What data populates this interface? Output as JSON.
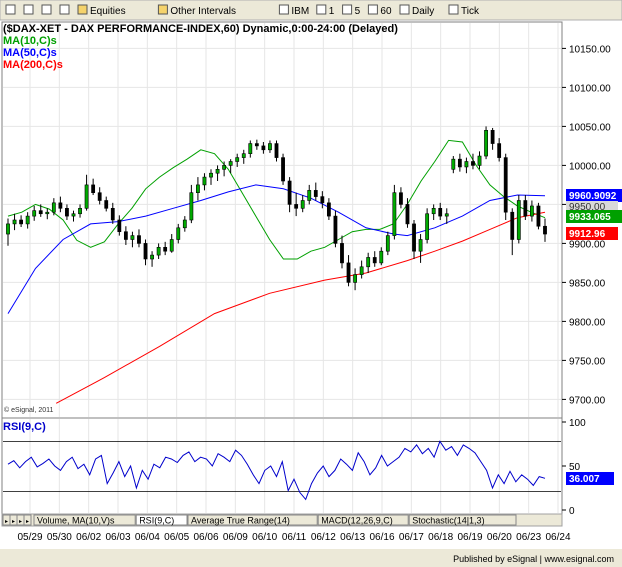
{
  "toolbar": {
    "items": [
      {
        "icon": "chart-type-icon",
        "label": ""
      },
      {
        "icon": "grid-icon",
        "label": ""
      },
      {
        "icon": "crosshair-icon",
        "label": ""
      },
      {
        "icon": "add-icon",
        "label": ""
      },
      {
        "icon": "folder-icon",
        "label": "Equities"
      },
      {
        "icon": "folder-icon",
        "label": "Other Intervals"
      },
      {
        "icon": "symbol-icon",
        "label": "IBM"
      },
      {
        "icon": "interval-icon",
        "label": "1"
      },
      {
        "icon": "interval-icon",
        "label": "5"
      },
      {
        "icon": "interval-icon",
        "label": "60"
      },
      {
        "icon": "interval-icon",
        "label": "Daily"
      },
      {
        "icon": "interval-icon",
        "label": "Tick"
      }
    ]
  },
  "colors": {
    "price": "#000000",
    "candle_up": "#00aa00",
    "ma10": "#00a000",
    "ma50": "#0000ff",
    "ma200": "#ff0000",
    "rsi": "#0000cc",
    "grid": "#e6e6e6"
  },
  "chart_data": [
    {
      "type": "candlestick",
      "title": "($DAX-XET - DAX PERFORMANCE-INDEX,60) Dynamic,0:00-24:00 (Delayed)",
      "legend": [
        "MA(10,C)s",
        "MA(50,C)s",
        "MA(200,C)s"
      ],
      "legend_placement": "top-left",
      "grid": true,
      "watermark": "© eSignal, 2011",
      "x_tick_labels": [
        "05/29",
        "05/30",
        "06/02",
        "06/03",
        "06/04",
        "06/05",
        "06/06",
        "06/09",
        "06/10",
        "06/11",
        "06/12",
        "06/13",
        "06/16",
        "06/17",
        "06/18",
        "06/19",
        "06/20",
        "06/23",
        "06/24"
      ],
      "y_ticks": [
        10150,
        10100,
        10050,
        10000,
        9950,
        9900,
        9850,
        9800,
        9750,
        9700
      ],
      "ylim": [
        9680,
        10180
      ],
      "last_values": {
        "ma50": "9960.9092",
        "hidden_tag": "9950.00",
        "ma10": "9933.065",
        "last_price": "9912.96"
      },
      "series": [
        {
          "name": "MA(10,C)s",
          "x": [
            0,
            4,
            8,
            12,
            16,
            20,
            24,
            28,
            32,
            36,
            40,
            44,
            48,
            52,
            56,
            60,
            64,
            68,
            72,
            76,
            80,
            84,
            88,
            92,
            96,
            100,
            104,
            108,
            112,
            116,
            120,
            124,
            128,
            132,
            136,
            140,
            144,
            148,
            152,
            156
          ],
          "values": [
            9935,
            9940,
            9950,
            9944,
            9930,
            9904,
            9895,
            9902,
            9925,
            9945,
            9970,
            9985,
            9997,
            10008,
            10020,
            10015,
            9995,
            9965,
            9935,
            9905,
            9880,
            9880,
            9890,
            9895,
            9905,
            9915,
            9918,
            9918,
            9925,
            9950,
            9980,
            10005,
            10032,
            10030,
            10000,
            9975,
            9960,
            9948,
            9940,
            9933
          ]
        },
        {
          "name": "MA(50,C)s",
          "x": [
            0,
            8,
            16,
            24,
            32,
            40,
            48,
            56,
            64,
            72,
            80,
            88,
            96,
            104,
            112,
            116,
            124,
            132,
            140,
            148,
            156
          ],
          "values": [
            9810,
            9868,
            9905,
            9925,
            9928,
            9935,
            9945,
            9955,
            9966,
            9975,
            9970,
            9958,
            9940,
            9920,
            9912,
            9910,
            9920,
            9935,
            9955,
            9962,
            9961
          ]
        },
        {
          "name": "MA(200,C)s",
          "x": [
            14,
            28,
            44,
            60,
            76,
            92,
            104,
            116,
            124,
            132,
            140,
            148,
            156
          ],
          "values": [
            9695,
            9728,
            9768,
            9810,
            9836,
            9853,
            9862,
            9878,
            9890,
            9903,
            9918,
            9933,
            9940
          ]
        }
      ],
      "candles": [
        {
          "o": 9912,
          "h": 9932,
          "l": 9897,
          "c": 9925
        },
        {
          "o": 9925,
          "h": 9938,
          "l": 9917,
          "c": 9930
        },
        {
          "o": 9930,
          "h": 9936,
          "l": 9921,
          "c": 9925
        },
        {
          "o": 9925,
          "h": 9940,
          "l": 9919,
          "c": 9935
        },
        {
          "o": 9935,
          "h": 9948,
          "l": 9929,
          "c": 9942
        },
        {
          "o": 9942,
          "h": 9950,
          "l": 9934,
          "c": 9938
        },
        {
          "o": 9938,
          "h": 9945,
          "l": 9931,
          "c": 9940
        },
        {
          "o": 9940,
          "h": 9958,
          "l": 9936,
          "c": 9952
        },
        {
          "o": 9952,
          "h": 9960,
          "l": 9940,
          "c": 9945
        },
        {
          "o": 9945,
          "h": 9950,
          "l": 9930,
          "c": 9935
        },
        {
          "o": 9935,
          "h": 9942,
          "l": 9928,
          "c": 9938
        },
        {
          "o": 9938,
          "h": 9950,
          "l": 9933,
          "c": 9945
        },
        {
          "o": 9945,
          "h": 9988,
          "l": 9942,
          "c": 9975
        },
        {
          "o": 9975,
          "h": 9983,
          "l": 9962,
          "c": 9965
        },
        {
          "o": 9965,
          "h": 9972,
          "l": 9950,
          "c": 9955
        },
        {
          "o": 9955,
          "h": 9960,
          "l": 9941,
          "c": 9945
        },
        {
          "o": 9945,
          "h": 9952,
          "l": 9925,
          "c": 9930
        },
        {
          "o": 9930,
          "h": 9936,
          "l": 9910,
          "c": 9915
        },
        {
          "o": 9915,
          "h": 9922,
          "l": 9898,
          "c": 9905
        },
        {
          "o": 9905,
          "h": 9915,
          "l": 9895,
          "c": 9910
        },
        {
          "o": 9910,
          "h": 9918,
          "l": 9895,
          "c": 9900
        },
        {
          "o": 9900,
          "h": 9905,
          "l": 9872,
          "c": 9880
        },
        {
          "o": 9880,
          "h": 9890,
          "l": 9870,
          "c": 9885
        },
        {
          "o": 9885,
          "h": 9900,
          "l": 9880,
          "c": 9895
        },
        {
          "o": 9895,
          "h": 9902,
          "l": 9885,
          "c": 9890
        },
        {
          "o": 9890,
          "h": 9912,
          "l": 9888,
          "c": 9905
        },
        {
          "o": 9905,
          "h": 9925,
          "l": 9900,
          "c": 9920
        },
        {
          "o": 9920,
          "h": 9935,
          "l": 9915,
          "c": 9930
        },
        {
          "o": 9930,
          "h": 9975,
          "l": 9926,
          "c": 9965
        },
        {
          "o": 9965,
          "h": 9985,
          "l": 9955,
          "c": 9975
        },
        {
          "o": 9975,
          "h": 9990,
          "l": 9968,
          "c": 9985
        },
        {
          "o": 9985,
          "h": 9995,
          "l": 9975,
          "c": 9990
        },
        {
          "o": 9990,
          "h": 10000,
          "l": 9980,
          "c": 9995
        },
        {
          "o": 9995,
          "h": 10005,
          "l": 9986,
          "c": 10000
        },
        {
          "o": 10000,
          "h": 10008,
          "l": 9990,
          "c": 10005
        },
        {
          "o": 10005,
          "h": 10015,
          "l": 9998,
          "c": 10010
        },
        {
          "o": 10010,
          "h": 10020,
          "l": 10002,
          "c": 10015
        },
        {
          "o": 10015,
          "h": 10032,
          "l": 10010,
          "c": 10028
        },
        {
          "o": 10028,
          "h": 10033,
          "l": 10020,
          "c": 10025
        },
        {
          "o": 10025,
          "h": 10030,
          "l": 10015,
          "c": 10020
        },
        {
          "o": 10020,
          "h": 10032,
          "l": 10016,
          "c": 10028
        },
        {
          "o": 10028,
          "h": 10032,
          "l": 10005,
          "c": 10010
        },
        {
          "o": 10010,
          "h": 10015,
          "l": 9975,
          "c": 9980
        },
        {
          "o": 9980,
          "h": 9985,
          "l": 9940,
          "c": 9950
        },
        {
          "o": 9950,
          "h": 9965,
          "l": 9935,
          "c": 9945
        },
        {
          "o": 9945,
          "h": 9962,
          "l": 9940,
          "c": 9955
        },
        {
          "o": 9955,
          "h": 9975,
          "l": 9950,
          "c": 9968
        },
        {
          "o": 9968,
          "h": 9978,
          "l": 9955,
          "c": 9960
        },
        {
          "o": 9960,
          "h": 9967,
          "l": 9945,
          "c": 9952
        },
        {
          "o": 9952,
          "h": 9958,
          "l": 9930,
          "c": 9935
        },
        {
          "o": 9935,
          "h": 9942,
          "l": 9895,
          "c": 9900
        },
        {
          "o": 9900,
          "h": 9910,
          "l": 9868,
          "c": 9875
        },
        {
          "o": 9875,
          "h": 9885,
          "l": 9845,
          "c": 9850
        },
        {
          "o": 9850,
          "h": 9868,
          "l": 9840,
          "c": 9860
        },
        {
          "o": 9860,
          "h": 9878,
          "l": 9855,
          "c": 9870
        },
        {
          "o": 9870,
          "h": 9888,
          "l": 9862,
          "c": 9882
        },
        {
          "o": 9882,
          "h": 9890,
          "l": 9870,
          "c": 9875
        },
        {
          "o": 9875,
          "h": 9895,
          "l": 9872,
          "c": 9890
        },
        {
          "o": 9890,
          "h": 9915,
          "l": 9885,
          "c": 9910
        },
        {
          "o": 9910,
          "h": 9975,
          "l": 9905,
          "c": 9965
        },
        {
          "o": 9965,
          "h": 9972,
          "l": 9945,
          "c": 9950
        },
        {
          "o": 9950,
          "h": 9958,
          "l": 9920,
          "c": 9925
        },
        {
          "o": 9925,
          "h": 9930,
          "l": 9880,
          "c": 9890
        },
        {
          "o": 9890,
          "h": 9912,
          "l": 9875,
          "c": 9905
        },
        {
          "o": 9905,
          "h": 9945,
          "l": 9900,
          "c": 9938
        },
        {
          "o": 9938,
          "h": 9950,
          "l": 9930,
          "c": 9945
        },
        {
          "o": 9945,
          "h": 9952,
          "l": 9930,
          "c": 9935
        },
        {
          "o": 9935,
          "h": 9945,
          "l": 9925,
          "c": 9938
        },
        {
          "o": 9995,
          "h": 10012,
          "l": 9990,
          "c": 10008
        },
        {
          "o": 10008,
          "h": 10015,
          "l": 9992,
          "c": 9998
        },
        {
          "o": 9998,
          "h": 10010,
          "l": 9990,
          "c": 10005
        },
        {
          "o": 10005,
          "h": 10015,
          "l": 9995,
          "c": 10000
        },
        {
          "o": 10000,
          "h": 10018,
          "l": 9995,
          "c": 10012
        },
        {
          "o": 10012,
          "h": 10050,
          "l": 10008,
          "c": 10045
        },
        {
          "o": 10045,
          "h": 10048,
          "l": 10020,
          "c": 10028
        },
        {
          "o": 10028,
          "h": 10035,
          "l": 10005,
          "c": 10010
        },
        {
          "o": 10010,
          "h": 10015,
          "l": 9930,
          "c": 9940
        },
        {
          "o": 9940,
          "h": 9945,
          "l": 9885,
          "c": 9905
        },
        {
          "o": 9905,
          "h": 9962,
          "l": 9900,
          "c": 9955
        },
        {
          "o": 9955,
          "h": 9962,
          "l": 9930,
          "c": 9935
        },
        {
          "o": 9935,
          "h": 9955,
          "l": 9928,
          "c": 9948
        },
        {
          "o": 9948,
          "h": 9952,
          "l": 9918,
          "c": 9922
        },
        {
          "o": 9922,
          "h": 9932,
          "l": 9902,
          "c": 9912
        }
      ]
    },
    {
      "type": "line",
      "title": "RSI(9,C)",
      "y_ticks": [
        100,
        50,
        0
      ],
      "ylim": [
        0,
        100
      ],
      "reference_lines": [
        78,
        21
      ],
      "last_value": "36.007",
      "series": [
        {
          "name": "RSI(9,C)",
          "values": [
            52,
            56,
            48,
            55,
            60,
            49,
            53,
            58,
            50,
            45,
            55,
            60,
            47,
            52,
            40,
            58,
            62,
            30,
            42,
            55,
            38,
            50,
            25,
            45,
            35,
            52,
            48,
            60,
            58,
            54,
            62,
            66,
            55,
            60,
            58,
            50,
            64,
            60,
            55,
            68,
            62,
            52,
            40,
            30,
            45,
            50,
            38,
            55,
            22,
            35,
            20,
            12,
            30,
            42,
            50,
            38,
            45,
            58,
            52,
            45,
            65,
            55,
            40,
            48,
            62,
            50,
            55,
            60,
            70,
            66,
            74,
            64,
            70,
            60,
            78,
            68,
            72,
            62,
            74,
            70,
            65,
            55,
            45,
            25,
            40,
            30,
            44,
            32,
            40,
            35,
            28,
            38,
            36
          ]
        }
      ]
    }
  ],
  "tabs": [
    "Volume, MA(10,V)s",
    "RSI(9,C)",
    "Average True Range(14)",
    "MACD(12,26,9,C)",
    "Stochastic(14|1,3)"
  ],
  "footer": {
    "published": "Published by eSignal | www.esignal.com"
  }
}
